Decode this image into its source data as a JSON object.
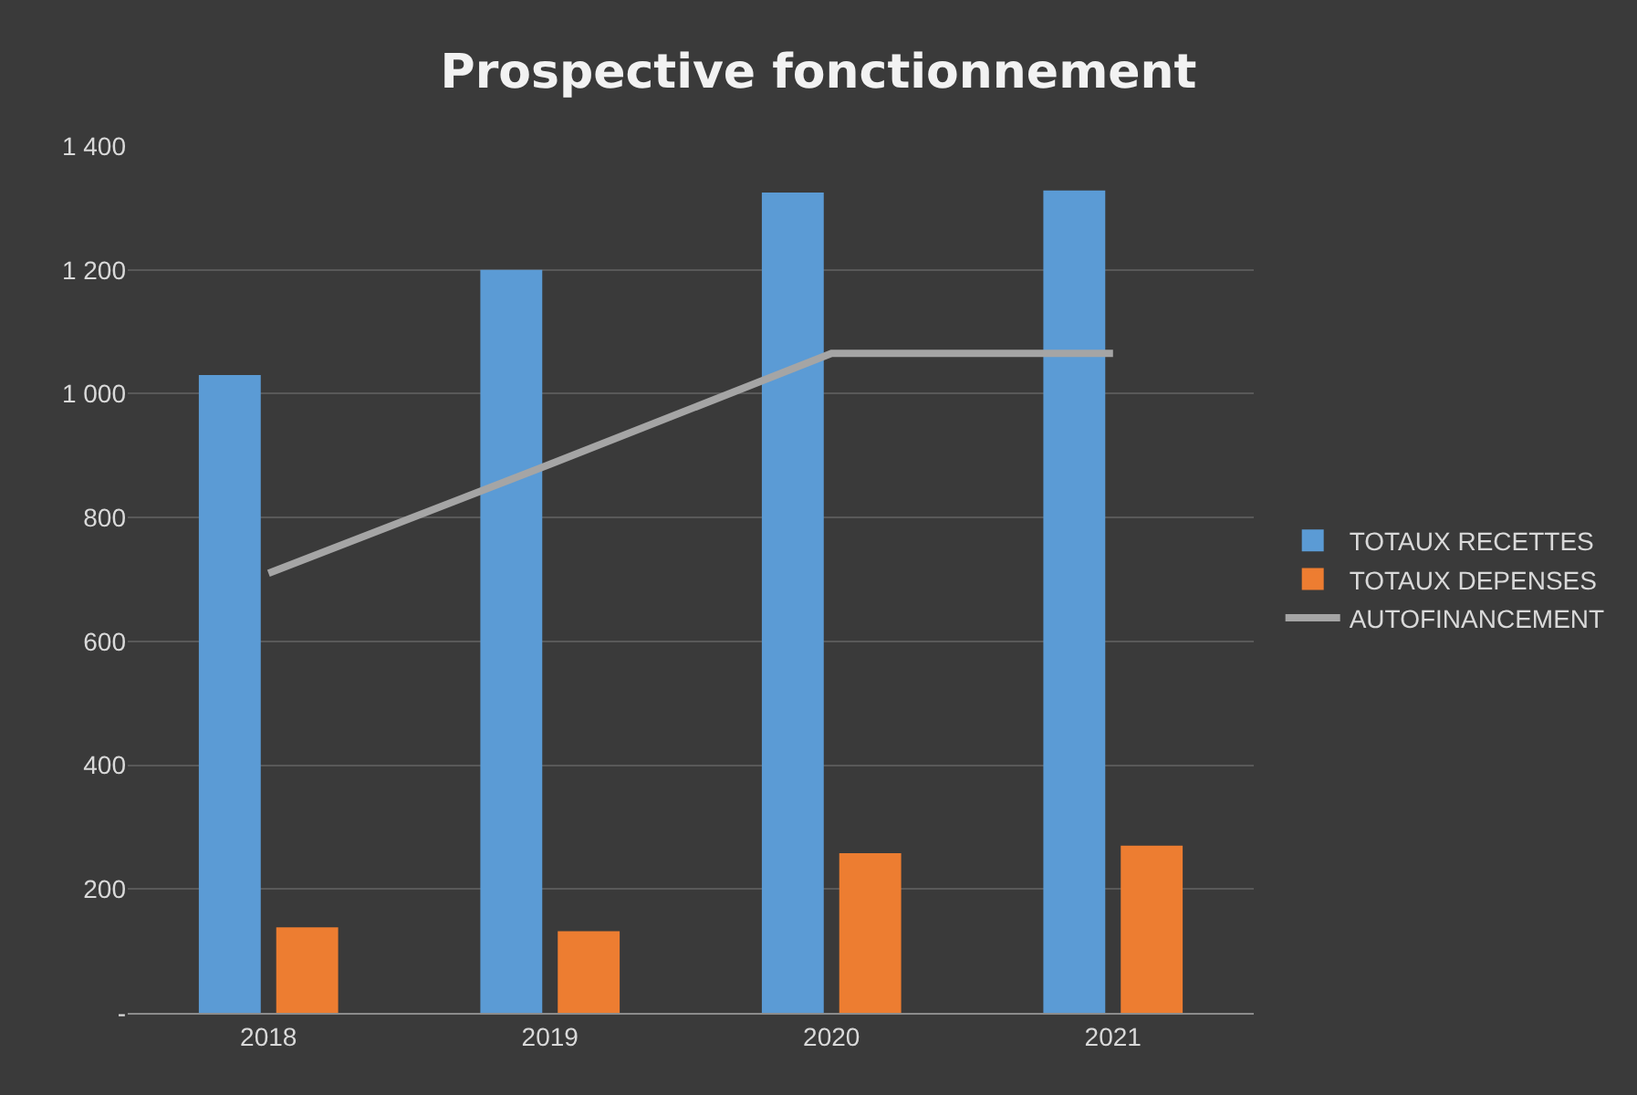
{
  "chart_data": {
    "type": "bar",
    "title": "Prospective fonctionnement",
    "categories": [
      "2018",
      "2019",
      "2020",
      "2021"
    ],
    "series": [
      {
        "name": "TOTAUX RECETTES",
        "color": "#5b9bd5",
        "values": [
          1030,
          1200,
          1325,
          1328
        ]
      },
      {
        "name": "TOTAUX DEPENSES",
        "color": "#ed7d31",
        "values": [
          138,
          132,
          258,
          270
        ]
      },
      {
        "name": "AUTOFINANCEMENT",
        "type": "line",
        "color": "#a5a5a5",
        "values": [
          710,
          886,
          1065,
          1065
        ]
      }
    ],
    "ylim": [
      0,
      1400
    ],
    "yticks": [
      {
        "value": 0,
        "label": "-"
      },
      {
        "value": 200,
        "label": "200"
      },
      {
        "value": 400,
        "label": "400"
      },
      {
        "value": 600,
        "label": "600"
      },
      {
        "value": 800,
        "label": "800"
      },
      {
        "value": 1000,
        "label": "1 000"
      },
      {
        "value": 1200,
        "label": "1 200"
      },
      {
        "value": 1400,
        "label": "1 400"
      }
    ],
    "grid": "y",
    "legend": "right",
    "marker": "none",
    "line_style": "solid"
  }
}
